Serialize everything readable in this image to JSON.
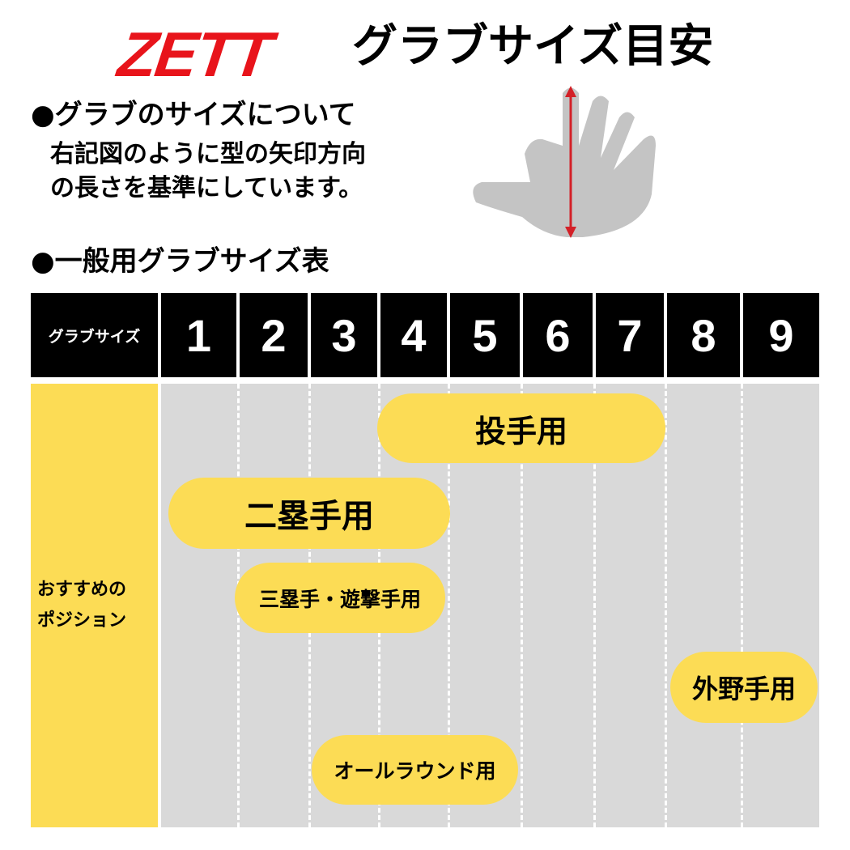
{
  "header": {
    "logo": "ZETT",
    "title": "グラブサイズ目安"
  },
  "about": {
    "heading": "●グラブのサイズについて",
    "lines": [
      "右記図のように型の矢印方向",
      "の長さを基準にしています。"
    ]
  },
  "hand_figure": {
    "icon": "hand-measure-icon",
    "arrow_color": "#d32027"
  },
  "table": {
    "heading": "●一般用グラブサイズ表",
    "size_label": "グラブサイズ",
    "sizes": [
      "1",
      "2",
      "3",
      "4",
      "5",
      "6",
      "7",
      "8",
      "9"
    ],
    "position_label_1": "おすすめの",
    "position_label_2": "ポジション",
    "positions": [
      {
        "label": "投手用",
        "sizes": "4-7"
      },
      {
        "label": "二塁手用",
        "sizes": "1-4"
      },
      {
        "label": "三塁手・遊撃手用",
        "sizes": "2-4"
      },
      {
        "label": "外野手用",
        "sizes": "8-9"
      },
      {
        "label": "オールラウンド用",
        "sizes": "3-5"
      }
    ]
  },
  "colors": {
    "brand_red": "#e8141b",
    "highlight_yellow": "#fcdc55",
    "header_black": "#000000",
    "grid_gray": "#d9d9d9"
  }
}
